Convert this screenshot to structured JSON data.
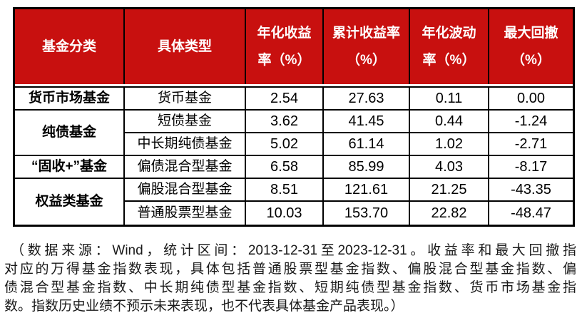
{
  "colors": {
    "header_bg": "#c8100f",
    "header_text": "#ffffff",
    "border": "#000000",
    "body_text": "#000000"
  },
  "table": {
    "headers": [
      {
        "lines": [
          "基金分类"
        ]
      },
      {
        "lines": [
          "具体类型"
        ]
      },
      {
        "lines": [
          "年化收益",
          "率（%）"
        ]
      },
      {
        "lines": [
          "累计收益率",
          "（%）"
        ]
      },
      {
        "lines": [
          "年化波动",
          "率（%）"
        ]
      },
      {
        "lines": [
          "最大回撤",
          "（%）"
        ]
      }
    ],
    "groups": [
      {
        "category": "货币市场基金",
        "rows": [
          {
            "type": "货币基金",
            "values": [
              "2.54",
              "27.63",
              "0.11",
              "0.00"
            ]
          }
        ]
      },
      {
        "category": "纯债基金",
        "rows": [
          {
            "type": "短债基金",
            "values": [
              "3.62",
              "41.45",
              "0.44",
              "-1.24"
            ]
          },
          {
            "type": "中长期纯债基金",
            "values": [
              "5.02",
              "61.14",
              "1.02",
              "-2.71"
            ]
          }
        ]
      },
      {
        "category": "“固收+”基金",
        "rows": [
          {
            "type": "偏债混合型基金",
            "values": [
              "6.58",
              "85.99",
              "4.03",
              "-8.17"
            ]
          }
        ]
      },
      {
        "category": "权益类基金",
        "rows": [
          {
            "type": "偏股混合型基金",
            "values": [
              "8.51",
              "121.61",
              "21.25",
              "-43.35"
            ]
          },
          {
            "type": "普通股票型基金",
            "values": [
              "10.03",
              "153.70",
              "22.82",
              "-48.47"
            ]
          }
        ]
      }
    ]
  },
  "footnote": {
    "lines": [
      "（数据来源：Wind，统计区间：2013-12-31至2023-12-31。收益率和最大回撤指",
      "对应的万得基金指数表现，具体包括普通股票型基金指数、偏股混合型基金指数、偏",
      "债混合型基金指数、中长期纯债型基金指数、短期纯债型基金指数、货币市场基金指",
      "数。指数历史业绩不预示未来表现，也不代表具体基金产品表现。）"
    ]
  },
  "chart_data": {
    "type": "table",
    "title": "",
    "columns": [
      "基金分类",
      "具体类型",
      "年化收益率（%）",
      "累计收益率（%）",
      "年化波动率（%）",
      "最大回撤（%）"
    ],
    "rows": [
      [
        "货币市场基金",
        "货币基金",
        2.54,
        27.63,
        0.11,
        0.0
      ],
      [
        "纯债基金",
        "短债基金",
        3.62,
        41.45,
        0.44,
        -1.24
      ],
      [
        "纯债基金",
        "中长期纯债基金",
        5.02,
        61.14,
        1.02,
        -2.71
      ],
      [
        "“固收+”基金",
        "偏债混合型基金",
        6.58,
        85.99,
        4.03,
        -8.17
      ],
      [
        "权益类基金",
        "偏股混合型基金",
        8.51,
        121.61,
        21.25,
        -43.35
      ],
      [
        "权益类基金",
        "普通股票型基金",
        10.03,
        153.7,
        22.82,
        -48.47
      ]
    ],
    "merged_first_column_groups": [
      "货币市场基金",
      "纯债基金",
      "“固收+”基金",
      "权益类基金"
    ],
    "source_note": "（数据来源：Wind，统计区间：2013-12-31至2023-12-31。收益率和最大回撤指对应的万得基金指数表现，具体包括普通股票型基金指数、偏股混合型基金指数、偏债混合型基金指数、中长期纯债型基金指数、短期纯债型基金指数、货币市场基金指数。指数历史业绩不预示未来表现，也不代表具体基金产品表现。）"
  }
}
